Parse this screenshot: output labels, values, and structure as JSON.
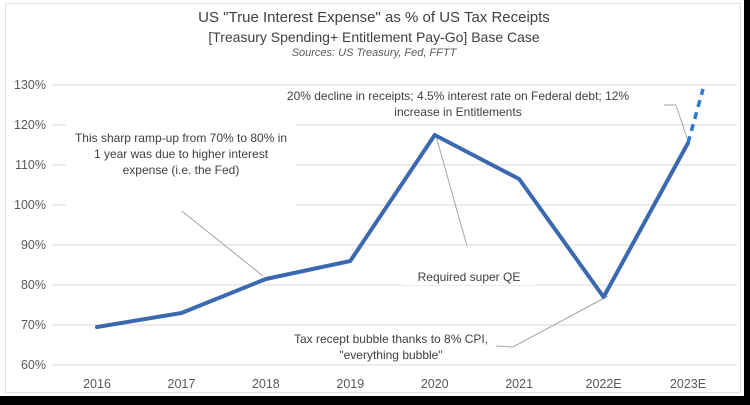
{
  "chart_data": {
    "type": "line",
    "title": "US \"True Interest Expense\" as % of US Tax Receipts",
    "subtitle": "[Treasury Spending+ Entitlement Pay-Go] Base Case",
    "source_note": "Sources: US Treasury, Fed, FFTT",
    "categories": [
      "2016",
      "2017",
      "2018",
      "2019",
      "2020",
      "2021",
      "2022E",
      "2023E"
    ],
    "values": [
      69.5,
      73,
      81.5,
      86,
      117.5,
      106.5,
      77,
      115.5
    ],
    "forecast_extension": {
      "end_value": 129,
      "style": "dashed"
    },
    "ylim": [
      60,
      130
    ],
    "y_ticks": [
      130,
      120,
      110,
      100,
      90,
      80,
      70,
      60
    ],
    "y_tick_suffix": "%",
    "grid": "horizontal-only",
    "legend": "none",
    "colors": {
      "line": "#3B69B0",
      "forecast_dash": "#2E79CE",
      "gridline": "#D9D9D9",
      "axis_label": "#595959",
      "callout": "#A6A6A6",
      "text": "#404040"
    },
    "annotations": {
      "ramp": {
        "lines": [
          "This sharp ramp-up from 70% to 80% in",
          "1 year was due to higher interest",
          "expense (i.e. the Fed)"
        ]
      },
      "receipts": {
        "lines": [
          "20% decline in receipts; 4.5% interest rate on Federal debt; 12%",
          "increase in Entitlements"
        ]
      },
      "qe": {
        "lines": [
          "Required super QE"
        ]
      },
      "bubble": {
        "lines": [
          "Tax recept bubble thanks to 8% CPI,",
          "\"everything bubble\""
        ]
      }
    }
  }
}
